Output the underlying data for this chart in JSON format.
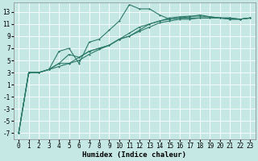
{
  "background_color": "#c5e8e5",
  "grid_color": "#ffffff",
  "line_color": "#2d7a6a",
  "xlabel": "Humidex (Indice chaleur)",
  "xlim": [
    -0.5,
    23.5
  ],
  "ylim": [
    -8,
    14.5
  ],
  "yticks": [
    -7,
    -5,
    -3,
    -1,
    1,
    3,
    5,
    7,
    9,
    11,
    13
  ],
  "xticks": [
    0,
    1,
    2,
    3,
    4,
    5,
    6,
    7,
    8,
    9,
    10,
    11,
    12,
    13,
    14,
    15,
    16,
    17,
    18,
    19,
    20,
    21,
    22,
    23
  ],
  "series1_x": [
    0,
    1,
    2,
    3,
    4,
    5,
    6,
    7,
    8,
    9,
    10,
    11,
    12,
    13,
    14,
    15,
    16,
    17,
    18,
    19,
    20,
    21,
    22,
    23
  ],
  "series1_y": [
    -7.0,
    3.0,
    3.0,
    3.5,
    6.5,
    7.0,
    4.5,
    8.0,
    8.5,
    10.0,
    11.5,
    14.2,
    13.5,
    13.5,
    12.5,
    11.8,
    12.0,
    12.2,
    12.5,
    12.2,
    12.0,
    12.0,
    11.8,
    12.0
  ],
  "series2_x": [
    0,
    1,
    2,
    3,
    4,
    5,
    6,
    7,
    8,
    9,
    10,
    11,
    12,
    13,
    14,
    15,
    16,
    17,
    18,
    19,
    20,
    21,
    22,
    23
  ],
  "series2_y": [
    -7.0,
    3.0,
    3.0,
    3.5,
    4.5,
    6.0,
    5.5,
    6.5,
    7.0,
    7.5,
    8.5,
    9.5,
    10.5,
    11.0,
    11.5,
    12.0,
    12.2,
    12.3,
    12.3,
    12.2,
    12.0,
    12.0,
    11.8,
    12.0
  ],
  "series3_x": [
    0,
    1,
    2,
    3,
    4,
    5,
    6,
    7,
    8,
    9,
    10,
    11,
    12,
    13,
    14,
    15,
    16,
    17,
    18,
    19,
    20,
    21,
    22,
    23
  ],
  "series3_y": [
    -7.0,
    3.0,
    3.0,
    3.5,
    4.5,
    4.5,
    5.5,
    6.5,
    7.0,
    7.5,
    8.5,
    9.0,
    10.0,
    11.0,
    11.5,
    11.8,
    12.0,
    12.0,
    12.0,
    12.0,
    12.0,
    11.8,
    11.8,
    12.0
  ],
  "series4_x": [
    0,
    1,
    2,
    3,
    4,
    5,
    6,
    7,
    8,
    9,
    10,
    11,
    12,
    13,
    14,
    15,
    16,
    17,
    18,
    19,
    20,
    21,
    22,
    23
  ],
  "series4_y": [
    -7.0,
    3.0,
    3.0,
    3.5,
    4.0,
    4.5,
    5.0,
    6.0,
    6.8,
    7.5,
    8.5,
    9.0,
    9.8,
    10.5,
    11.2,
    11.5,
    11.8,
    11.8,
    12.0,
    12.0,
    12.0,
    11.8,
    11.8,
    12.0
  ],
  "ylabel_ticks": [
    "-7",
    "-5",
    "-3",
    "-1",
    "1",
    "3",
    "5",
    "7",
    "9",
    "11",
    "13"
  ],
  "tick_fontsize": 5.5,
  "xlabel_fontsize": 6.5,
  "linewidth": 0.8,
  "markersize": 2.0
}
